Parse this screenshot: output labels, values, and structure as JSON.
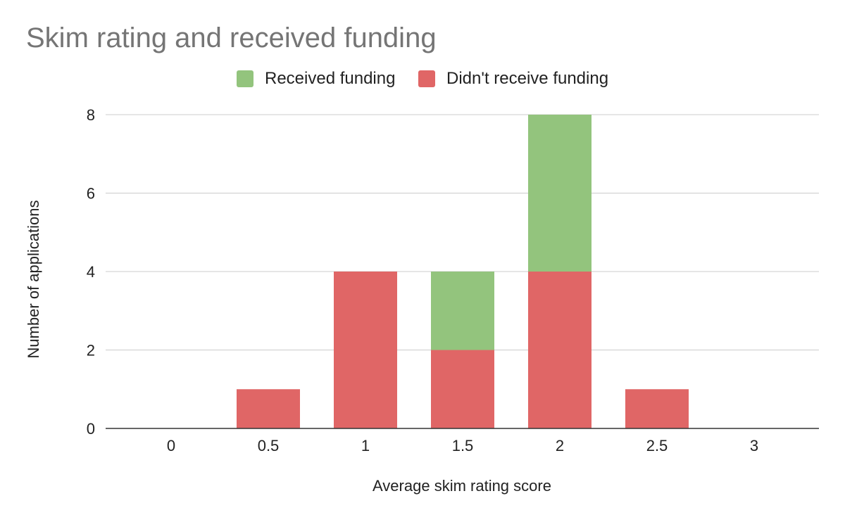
{
  "chart_data": {
    "type": "bar",
    "stacked": true,
    "title": "Skim rating and received funding",
    "xlabel": "Average skim rating score",
    "ylabel": "Number of applications",
    "categories": [
      "0",
      "0.5",
      "1",
      "1.5",
      "2",
      "2.5",
      "3"
    ],
    "series": [
      {
        "name": "Didn't receive funding",
        "color": "#e06666",
        "values": [
          0,
          1,
          4,
          2,
          4,
          1,
          0
        ]
      },
      {
        "name": "Received funding",
        "color": "#93c47d",
        "values": [
          0,
          0,
          0,
          2,
          4,
          0,
          0
        ]
      }
    ],
    "legend_order": [
      1,
      0
    ],
    "legend_position": "top",
    "ylim": [
      0,
      8
    ],
    "yticks": [
      "0",
      "2",
      "4",
      "6",
      "8"
    ],
    "grid": true
  }
}
